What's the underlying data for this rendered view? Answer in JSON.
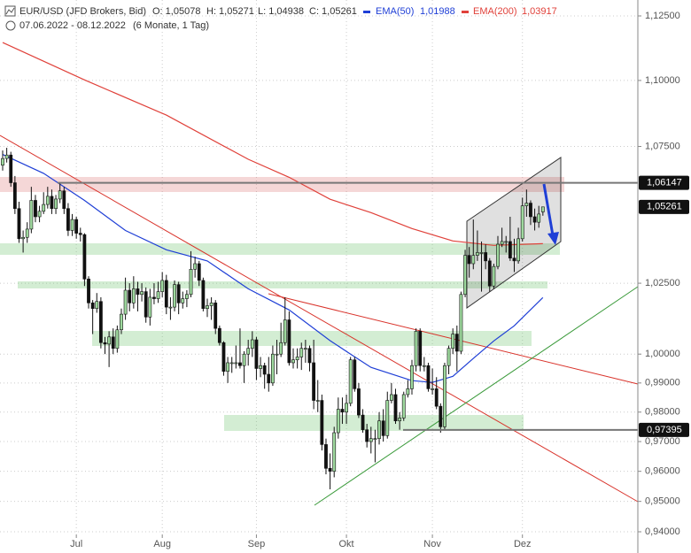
{
  "chart_data": {
    "type": "candlestick",
    "title": "EUR/USD (JFD Brokers, Bid)",
    "ohlc_labels": [
      "O: 1,05078",
      "H: 1,05271",
      "L: 1,04938",
      "C: 1,05261"
    ],
    "date_range": "07.06.2022 - 08.12.2022",
    "period": "(6 Monate, 1 Tag)",
    "log_scale": true,
    "grid": true,
    "up_color": "#9ed99e",
    "down_color": "#111111",
    "ylim": [
      0.94,
      1.125
    ],
    "yticks": [
      {
        "value": 1.125,
        "label": "1,12500"
      },
      {
        "value": 1.1,
        "label": "1,10000"
      },
      {
        "value": 1.075,
        "label": "1,07500"
      },
      {
        "value": 1.025,
        "label": "1,02500"
      },
      {
        "value": 1.0,
        "label": "1,00000"
      },
      {
        "value": 0.99,
        "label": "0,99000"
      },
      {
        "value": 0.98,
        "label": "0,98000"
      },
      {
        "value": 0.97,
        "label": "0,97000"
      },
      {
        "value": 0.96,
        "label": "0,96000"
      },
      {
        "value": 0.95,
        "label": "0,95000"
      },
      {
        "value": 0.94,
        "label": "0,94000"
      }
    ],
    "xlim": [
      -0.65,
      155.2
    ],
    "xticks": [
      {
        "value": 18,
        "label": "Jul"
      },
      {
        "value": 39,
        "label": "Aug"
      },
      {
        "value": 62,
        "label": "Sep"
      },
      {
        "value": 84,
        "label": "Okt"
      },
      {
        "value": 105,
        "label": "Nov"
      },
      {
        "value": 127,
        "label": "Dez"
      }
    ],
    "price_levels": [
      {
        "value": 1.06147,
        "label": "1,06147"
      },
      {
        "value": 1.05261,
        "label": "1,05261"
      },
      {
        "value": 0.97395,
        "label": "0,97395"
      }
    ],
    "lines": [
      {
        "name": "EMA(50)",
        "last_label": "1,01988",
        "color": "#1f3fd6",
        "x": [
          0,
          10,
          20,
          30,
          40,
          50,
          60,
          70,
          80,
          85,
          90,
          100,
          105,
          110,
          115,
          120,
          125,
          132
        ],
        "values": [
          1.072,
          1.065,
          1.055,
          1.044,
          1.037,
          1.033,
          1.023,
          1.0155,
          1.0047,
          1.0,
          0.9954,
          0.9908,
          0.9902,
          0.9923,
          0.9985,
          1.0046,
          1.0099,
          1.0199
        ]
      },
      {
        "name": "EMA(200)",
        "last_label": "1,03917",
        "color": "#e0413a",
        "x": [
          0,
          20,
          40,
          60,
          70,
          80,
          90,
          100,
          110,
          120,
          132
        ],
        "values": [
          1.1146,
          1.1002,
          1.0868,
          1.0702,
          1.0635,
          1.0554,
          1.0505,
          1.0447,
          1.0402,
          1.0386,
          1.0392
        ]
      }
    ],
    "values": [
      [
        1.068,
        1.0735,
        1.066,
        1.0705
      ],
      [
        1.0705,
        1.0745,
        1.069,
        1.0718
      ],
      [
        1.0718,
        1.073,
        1.06,
        1.0615
      ],
      [
        1.0615,
        1.064,
        1.05,
        1.052
      ],
      [
        1.052,
        1.0545,
        1.0395,
        1.041
      ],
      [
        1.041,
        1.044,
        1.036,
        1.0415
      ],
      [
        1.0415,
        1.047,
        1.0395,
        1.0445
      ],
      [
        1.0445,
        1.06,
        1.043,
        1.055
      ],
      [
        1.055,
        1.057,
        1.047,
        1.049
      ],
      [
        1.049,
        1.053,
        1.047,
        1.051
      ],
      [
        1.051,
        1.058,
        1.05,
        1.0535
      ],
      [
        1.0535,
        1.06,
        1.052,
        1.0565
      ],
      [
        1.0565,
        1.059,
        1.05,
        1.052
      ],
      [
        1.052,
        1.057,
        1.05,
        1.0555
      ],
      [
        1.0555,
        1.0615,
        1.054,
        1.0585
      ],
      [
        1.0585,
        1.06,
        1.05,
        1.052
      ],
      [
        1.052,
        1.054,
        1.042,
        1.044
      ],
      [
        1.044,
        1.05,
        1.042,
        1.048
      ],
      [
        1.048,
        1.049,
        1.041,
        1.043
      ],
      [
        1.043,
        1.045,
        1.04,
        1.0425
      ],
      [
        1.0425,
        1.043,
        1.024,
        1.0265
      ],
      [
        1.0265,
        1.0275,
        1.016,
        1.018
      ],
      [
        1.018,
        1.019,
        1.007,
        1.016
      ],
      [
        1.016,
        1.0215,
        1.0145,
        1.0185
      ],
      [
        1.0185,
        1.02,
        1.002,
        1.004
      ],
      [
        1.004,
        1.006,
        1.0,
        1.0035
      ],
      [
        1.0035,
        1.008,
        0.9955,
        1.006
      ],
      [
        1.006,
        1.009,
        1.0,
        1.002
      ],
      [
        1.002,
        1.01,
        1.0005,
        1.0085
      ],
      [
        1.0085,
        1.016,
        1.007,
        1.014
      ],
      [
        1.014,
        1.027,
        1.012,
        1.0225
      ],
      [
        1.0225,
        1.025,
        1.015,
        1.018
      ],
      [
        1.018,
        1.0275,
        1.016,
        1.023
      ],
      [
        1.023,
        1.0255,
        1.015,
        1.021
      ],
      [
        1.021,
        1.025,
        1.0185,
        1.022
      ],
      [
        1.022,
        1.0235,
        1.011,
        1.013
      ],
      [
        1.013,
        1.023,
        1.01,
        1.02
      ],
      [
        1.02,
        1.025,
        1.0175,
        1.0195
      ],
      [
        1.0195,
        1.0255,
        1.018,
        1.022
      ],
      [
        1.022,
        1.029,
        1.02,
        1.026
      ],
      [
        1.026,
        1.028,
        1.014,
        1.0165
      ],
      [
        1.0165,
        1.02,
        1.012,
        1.0165
      ],
      [
        1.0165,
        1.026,
        1.015,
        1.0245
      ],
      [
        1.0245,
        1.0255,
        1.014,
        1.018
      ],
      [
        1.018,
        1.022,
        1.016,
        1.0195
      ],
      [
        1.0195,
        1.0225,
        1.0165,
        1.021
      ],
      [
        1.021,
        1.0365,
        1.02,
        1.03
      ],
      [
        1.03,
        1.0345,
        1.027,
        1.032
      ],
      [
        1.032,
        1.033,
        1.024,
        1.026
      ],
      [
        1.026,
        1.027,
        1.015,
        1.016
      ],
      [
        1.016,
        1.0195,
        1.013,
        1.017
      ],
      [
        1.017,
        1.02,
        1.012,
        1.018
      ],
      [
        1.018,
        1.019,
        1.007,
        1.009
      ],
      [
        1.009,
        1.01,
        1.003,
        1.004
      ],
      [
        1.004,
        1.0045,
        0.9925,
        0.994
      ],
      [
        0.994,
        0.999,
        0.99,
        0.997
      ],
      [
        0.997,
        0.999,
        0.9935,
        0.997
      ],
      [
        0.997,
        1.003,
        0.995,
        0.997
      ],
      [
        0.997,
        1.009,
        0.995,
        0.996
      ],
      [
        0.996,
        1.001,
        0.99,
        1.0
      ],
      [
        1.0,
        1.005,
        0.996,
        1.002
      ],
      [
        1.002,
        1.008,
        0.999,
        1.005
      ],
      [
        1.005,
        1.006,
        0.991,
        0.995
      ],
      [
        0.995,
        0.999,
        0.992,
        0.996
      ],
      [
        0.996,
        0.997,
        0.988,
        0.993
      ],
      [
        0.993,
        0.999,
        0.987,
        0.99
      ],
      [
        0.99,
        1.003,
        0.989,
        1.0
      ],
      [
        1.0,
        1.005,
        0.993,
        1.0
      ],
      [
        1.0,
        1.011,
        0.999,
        1.004
      ],
      [
        1.004,
        1.02,
        1.003,
        1.012
      ],
      [
        1.012,
        1.015,
        0.996,
        0.997
      ],
      [
        0.997,
        1.002,
        0.995,
        0.998
      ],
      [
        0.998,
        1.002,
        0.995,
        0.999
      ],
      [
        0.999,
        1.004,
        0.9945,
        1.002
      ],
      [
        1.002,
        1.005,
        0.997,
        1.002
      ],
      [
        1.002,
        1.003,
        0.994,
        0.997
      ],
      [
        0.997,
        1.005,
        0.981,
        0.984
      ],
      [
        0.984,
        0.991,
        0.98,
        0.984
      ],
      [
        0.984,
        0.986,
        0.967,
        0.969
      ],
      [
        0.969,
        0.971,
        0.959,
        0.961
      ],
      [
        0.961,
        0.966,
        0.954,
        0.96
      ],
      [
        0.96,
        0.975,
        0.958,
        0.973
      ],
      [
        0.973,
        0.985,
        0.971,
        0.981
      ],
      [
        0.981,
        0.985,
        0.976,
        0.98
      ],
      [
        0.98,
        0.986,
        0.976,
        0.983
      ],
      [
        0.983,
        0.999,
        0.982,
        0.998
      ],
      [
        0.998,
        0.999,
        0.987,
        0.988
      ],
      [
        0.988,
        0.99,
        0.978,
        0.979
      ],
      [
        0.979,
        0.981,
        0.973,
        0.974
      ],
      [
        0.974,
        0.976,
        0.968,
        0.97
      ],
      [
        0.97,
        0.975,
        0.966,
        0.971
      ],
      [
        0.971,
        0.974,
        0.963,
        0.971
      ],
      [
        0.971,
        0.98,
        0.969,
        0.977
      ],
      [
        0.977,
        0.981,
        0.97,
        0.972
      ],
      [
        0.972,
        0.987,
        0.971,
        0.984
      ],
      [
        0.984,
        0.99,
        0.983,
        0.986
      ],
      [
        0.986,
        0.988,
        0.976,
        0.977
      ],
      [
        0.977,
        0.98,
        0.974,
        0.978
      ],
      [
        0.978,
        0.987,
        0.977,
        0.986
      ],
      [
        0.986,
        0.991,
        0.985,
        0.988
      ],
      [
        0.988,
        0.998,
        0.986,
        0.996
      ],
      [
        0.996,
        1.009,
        0.994,
        1.008
      ],
      [
        1.008,
        1.009,
        0.994,
        0.996
      ],
      [
        0.996,
        0.999,
        0.994,
        0.996
      ],
      [
        0.996,
        0.997,
        0.987,
        0.988
      ],
      [
        0.988,
        0.995,
        0.986,
        0.988
      ],
      [
        0.988,
        0.992,
        0.981,
        0.982
      ],
      [
        0.982,
        0.983,
        0.973,
        0.975
      ],
      [
        0.975,
        0.997,
        0.974,
        0.996
      ],
      [
        0.996,
        1.003,
        0.993,
        1.002
      ],
      [
        1.002,
        1.009,
        1.0,
        1.007
      ],
      [
        1.007,
        1.01,
        0.994,
        1.001
      ],
      [
        1.001,
        1.022,
        1.0,
        1.021
      ],
      [
        1.021,
        1.037,
        1.02,
        1.035
      ],
      [
        1.035,
        1.038,
        1.027,
        1.032
      ],
      [
        1.032,
        1.048,
        1.03,
        1.035
      ],
      [
        1.035,
        1.044,
        1.033,
        1.036
      ],
      [
        1.036,
        1.04,
        1.022,
        1.036
      ],
      [
        1.036,
        1.039,
        1.03,
        1.033
      ],
      [
        1.033,
        1.034,
        1.022,
        1.024
      ],
      [
        1.024,
        1.032,
        1.023,
        1.031
      ],
      [
        1.031,
        1.042,
        1.03,
        1.039
      ],
      [
        1.039,
        1.045,
        1.038,
        1.04
      ],
      [
        1.04,
        1.042,
        1.036,
        1.04
      ],
      [
        1.04,
        1.049,
        1.033,
        1.034
      ],
      [
        1.034,
        1.041,
        1.029,
        1.033
      ],
      [
        1.033,
        1.045,
        1.032,
        1.041
      ],
      [
        1.041,
        1.056,
        1.04,
        1.053
      ],
      [
        1.053,
        1.059,
        1.049,
        1.054
      ],
      [
        1.054,
        1.055,
        1.046,
        1.049
      ],
      [
        1.049,
        1.052,
        1.044,
        1.047
      ],
      [
        1.047,
        1.053,
        1.045,
        1.05
      ],
      [
        1.05078,
        1.05271,
        1.04938,
        1.05261
      ]
    ]
  }
}
